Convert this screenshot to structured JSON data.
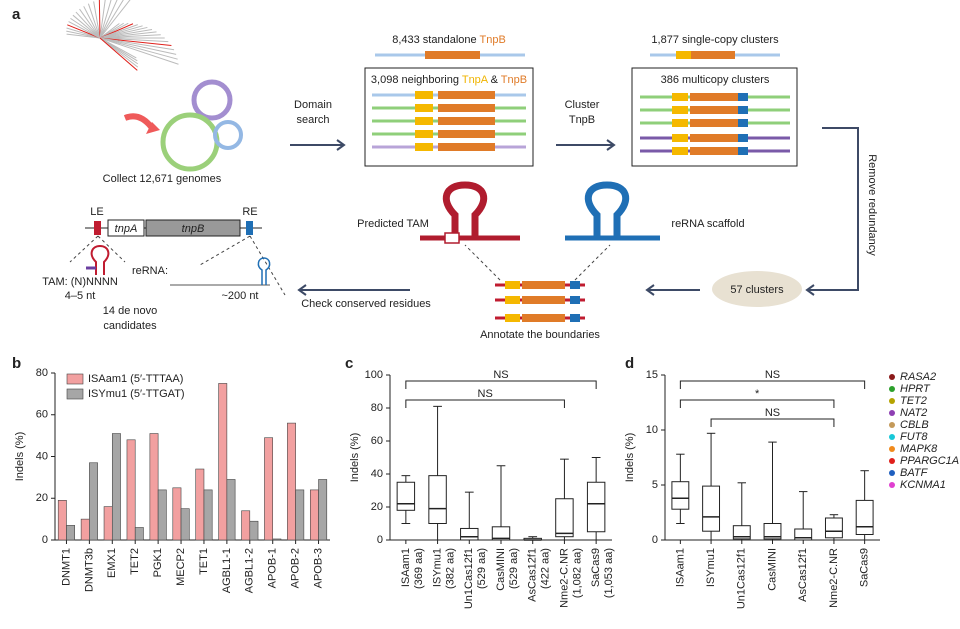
{
  "diagram": {
    "panel_a": "a",
    "collect": "Collect 12,671 genomes",
    "domain_search": [
      "Domain",
      "search"
    ],
    "standalone": {
      "text": "8,433 standalone",
      "gene": "TnpB"
    },
    "neighboring": {
      "text": "3,098 neighboring",
      "gene_a": "TnpA",
      "join": "&",
      "gene_b": "TnpB"
    },
    "cluster": [
      "Cluster",
      "TnpB"
    ],
    "single_copy": "1,877 single-copy clusters",
    "multicopy": "386 multicopy clusters",
    "remove": "Remove redundancy",
    "predicted_tam": "Predicted TAM",
    "rerna_scaffold": "reRNA scaffold",
    "clusters57": "57 clusters",
    "annotate": "Annotate the boundaries",
    "check": "Check conserved residues",
    "le": "LE",
    "re": "RE",
    "tnpa": "tnpA",
    "tnpb": "tnpB",
    "tam": "TAM: (N)NNNN",
    "tam_len": "4–5 nt",
    "rerna": "reRNA:",
    "rerna_len": "~200 nt",
    "candidates": [
      "14 de novo",
      "candidates"
    ]
  },
  "chart_data": [
    {
      "type": "bar",
      "panel": "b",
      "ylabel": "Indels (%)",
      "categories": [
        "DNMT1",
        "DNMT3b",
        "EMX1",
        "TET2",
        "PGK1",
        "MECP2",
        "TET1",
        "AGBL1-1",
        "AGBL1-2",
        "APOB-1",
        "APOB-2",
        "APOB-3"
      ],
      "series": [
        {
          "name": "ISAam1 (5′-TTTAA)",
          "color": "#f2a0a0",
          "values": [
            19,
            10,
            16,
            48,
            51,
            25,
            34,
            75,
            14,
            49,
            56,
            24
          ]
        },
        {
          "name": "ISYmu1 (5′-TTGAT)",
          "color": "#a6a6a6",
          "values": [
            7,
            37,
            51,
            6,
            24,
            15,
            24,
            29,
            9,
            0.5,
            24,
            29
          ]
        }
      ],
      "ylim": [
        0,
        80
      ],
      "yticks": [
        0,
        20,
        40,
        60,
        80
      ]
    },
    {
      "type": "box",
      "panel": "c",
      "ylabel": "Indels (%)",
      "categories": [
        "ISAam1",
        "ISYmu1",
        "Un1Cas12f1",
        "CasMINI",
        "AsCas12f1",
        "Nme2-C.NR",
        "SaCas9"
      ],
      "sublabels": [
        "(369 aa)",
        "(382 aa)",
        "(529 aa)",
        "(529 aa)",
        "(422 aa)",
        "(1,082 aa)",
        "(1,053 aa)"
      ],
      "boxes": [
        {
          "min": 10,
          "q1": 18,
          "median": 22,
          "q3": 35,
          "max": 39
        },
        {
          "min": 0,
          "q1": 10,
          "median": 19,
          "q3": 39,
          "max": 81
        },
        {
          "min": 0,
          "q1": 0,
          "median": 2,
          "q3": 7,
          "max": 29
        },
        {
          "min": 0,
          "q1": 0,
          "median": 1,
          "q3": 8,
          "max": 45
        },
        {
          "min": 0,
          "q1": 0,
          "median": 0,
          "q3": 1,
          "max": 2
        },
        {
          "min": 0,
          "q1": 2,
          "median": 4,
          "q3": 25,
          "max": 49
        },
        {
          "min": 0,
          "q1": 5,
          "median": 22,
          "q3": 35,
          "max": 50
        }
      ],
      "significance": [
        {
          "label": "NS",
          "from": "ISAam1",
          "to": "SaCas9"
        },
        {
          "label": "NS",
          "from": "ISAam1",
          "to": "Nme2-C.NR"
        }
      ],
      "ylim": [
        0,
        100
      ],
      "yticks": [
        0,
        20,
        40,
        60,
        80,
        100
      ]
    },
    {
      "type": "box",
      "panel": "d",
      "ylabel": "Indels (%)",
      "categories": [
        "ISAam1",
        "ISYmu1",
        "Un1Cas12f1",
        "CasMINI",
        "AsCas12f1",
        "Nme2-C.NR",
        "SaCas9"
      ],
      "boxes": [
        {
          "min": 1.5,
          "q1": 2.8,
          "median": 3.8,
          "q3": 5.3,
          "max": 7.8
        },
        {
          "min": 0,
          "q1": 0.8,
          "median": 2.1,
          "q3": 4.9,
          "max": 9.7
        },
        {
          "min": 0,
          "q1": 0.1,
          "median": 0.3,
          "q3": 1.3,
          "max": 5.2
        },
        {
          "min": 0,
          "q1": 0.1,
          "median": 0.3,
          "q3": 1.5,
          "max": 8.9
        },
        {
          "min": 0,
          "q1": 0,
          "median": 0.2,
          "q3": 1.0,
          "max": 4.4
        },
        {
          "min": 0,
          "q1": 0.2,
          "median": 0.8,
          "q3": 2.0,
          "max": 2.3
        },
        {
          "min": 0,
          "q1": 0.5,
          "median": 1.2,
          "q3": 3.6,
          "max": 6.3
        }
      ],
      "significance": [
        {
          "label": "NS",
          "from": "ISAam1",
          "to": "SaCas9"
        },
        {
          "label": "*",
          "from": "ISAam1",
          "to": "Nme2-C.NR"
        },
        {
          "label": "NS",
          "from": "ISYmu1",
          "to": "Nme2-C.NR"
        }
      ],
      "legend": [
        {
          "name": "RASA2",
          "color": "#8b1a1a"
        },
        {
          "name": "HPRT",
          "color": "#2ca02c"
        },
        {
          "name": "TET2",
          "color": "#b5a300"
        },
        {
          "name": "NAT2",
          "color": "#8e3fb3"
        },
        {
          "name": "CBLB",
          "color": "#c49a5a"
        },
        {
          "name": "FUT8",
          "color": "#17c8d8"
        },
        {
          "name": "MAPK8",
          "color": "#f08a1c"
        },
        {
          "name": "PPARGC1A",
          "color": "#e0201b"
        },
        {
          "name": "BATF",
          "color": "#1f5fbf"
        },
        {
          "name": "KCNMA1",
          "color": "#e040d0"
        }
      ],
      "ylim": [
        0,
        15
      ],
      "yticks": [
        0,
        5,
        10,
        15
      ]
    }
  ]
}
